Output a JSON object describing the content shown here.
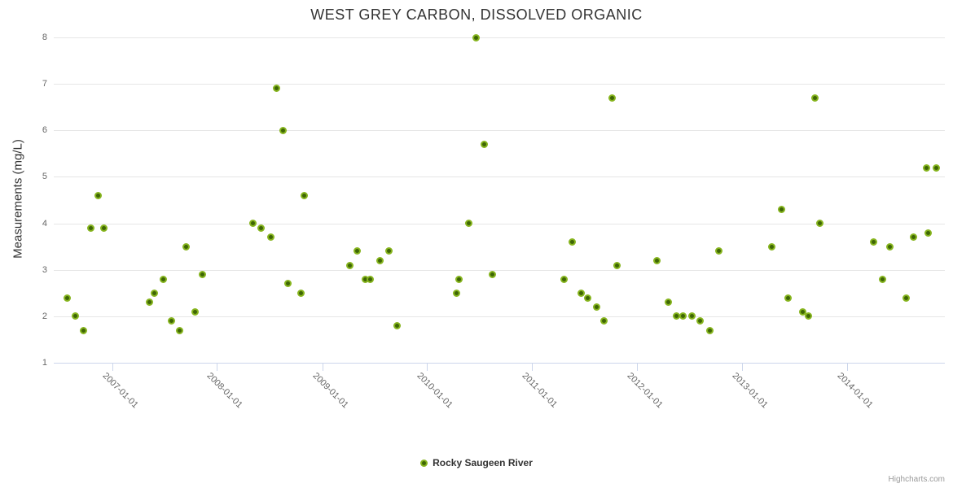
{
  "title": "WEST GREY CARBON, DISSOLVED ORGANIC",
  "credits": "Highcharts.com",
  "colors": {
    "marker_fill": "#3e6605",
    "marker_ring": "#86b41e",
    "gridline": "#e6e6e6",
    "axis_line": "#ccd6eb",
    "axis_label": "#666666",
    "title_text": "#333333",
    "credits_text": "#999999"
  },
  "chart_data": {
    "type": "scatter",
    "title": "WEST GREY CARBON, DISSOLVED ORGANIC",
    "xlabel": "",
    "ylabel": "Measurements (mg/L)",
    "ylim": [
      1,
      8
    ],
    "y_ticks": [
      1,
      2,
      3,
      4,
      5,
      6,
      7,
      8
    ],
    "x_ticks": [
      "2007-01-01",
      "2008-01-01",
      "2009-01-01",
      "2010-01-01",
      "2011-01-01",
      "2012-01-01",
      "2013-01-01",
      "2014-01-01"
    ],
    "x_range": [
      "2006-06-12",
      "2014-12-08"
    ],
    "grid": "horizontal",
    "legend_position": "bottom-center",
    "series": [
      {
        "name": "Rocky Saugeen River",
        "marker_fill": "#3e6605",
        "marker_ring": "#86b41e",
        "points": [
          [
            "2006-07-28",
            2.4
          ],
          [
            "2006-08-25",
            2.0
          ],
          [
            "2006-09-23",
            1.7
          ],
          [
            "2006-10-18",
            3.9
          ],
          [
            "2006-11-13",
            4.6
          ],
          [
            "2006-12-03",
            3.9
          ],
          [
            "2007-05-10",
            2.3
          ],
          [
            "2007-05-27",
            2.5
          ],
          [
            "2007-06-27",
            2.8
          ],
          [
            "2007-07-28",
            1.9
          ],
          [
            "2007-08-23",
            1.7
          ],
          [
            "2007-09-17",
            3.5
          ],
          [
            "2007-10-18",
            2.1
          ],
          [
            "2007-11-10",
            2.9
          ],
          [
            "2008-05-05",
            4.0
          ],
          [
            "2008-06-02",
            3.9
          ],
          [
            "2008-07-06",
            3.7
          ],
          [
            "2008-07-26",
            6.9
          ],
          [
            "2008-08-18",
            6.0
          ],
          [
            "2008-09-03",
            2.7
          ],
          [
            "2008-10-19",
            2.5
          ],
          [
            "2008-10-30",
            4.6
          ],
          [
            "2009-04-07",
            3.1
          ],
          [
            "2009-05-02",
            3.4
          ],
          [
            "2009-05-31",
            2.8
          ],
          [
            "2009-06-17",
            2.8
          ],
          [
            "2009-07-21",
            3.2
          ],
          [
            "2009-08-21",
            3.4
          ],
          [
            "2009-09-18",
            1.8
          ],
          [
            "2010-04-13",
            2.5
          ],
          [
            "2010-04-21",
            2.8
          ],
          [
            "2010-05-25",
            4.0
          ],
          [
            "2010-06-22",
            8.0
          ],
          [
            "2010-07-18",
            5.7
          ],
          [
            "2010-08-15",
            2.9
          ],
          [
            "2011-04-24",
            2.8
          ],
          [
            "2011-05-20",
            3.6
          ],
          [
            "2011-06-20",
            2.5
          ],
          [
            "2011-07-15",
            2.4
          ],
          [
            "2011-08-13",
            2.2
          ],
          [
            "2011-09-10",
            1.9
          ],
          [
            "2011-10-08",
            6.7
          ],
          [
            "2011-10-25",
            3.1
          ],
          [
            "2012-03-10",
            3.2
          ],
          [
            "2012-04-21",
            2.3
          ],
          [
            "2012-05-17",
            2.0
          ],
          [
            "2012-06-11",
            2.0
          ],
          [
            "2012-07-10",
            2.0
          ],
          [
            "2012-08-07",
            1.9
          ],
          [
            "2012-09-10",
            1.7
          ],
          [
            "2012-10-11",
            3.4
          ],
          [
            "2013-04-14",
            3.5
          ],
          [
            "2013-05-20",
            4.3
          ],
          [
            "2013-06-09",
            2.4
          ],
          [
            "2013-07-30",
            2.1
          ],
          [
            "2013-08-19",
            2.0
          ],
          [
            "2013-09-11",
            6.7
          ],
          [
            "2013-09-30",
            4.0
          ],
          [
            "2014-04-05",
            3.6
          ],
          [
            "2014-05-04",
            2.8
          ],
          [
            "2014-06-01",
            3.5
          ],
          [
            "2014-07-25",
            2.4
          ],
          [
            "2014-08-22",
            3.7
          ],
          [
            "2014-10-04",
            5.2
          ],
          [
            "2014-10-12",
            3.8
          ],
          [
            "2014-11-07",
            5.2
          ]
        ]
      }
    ]
  }
}
